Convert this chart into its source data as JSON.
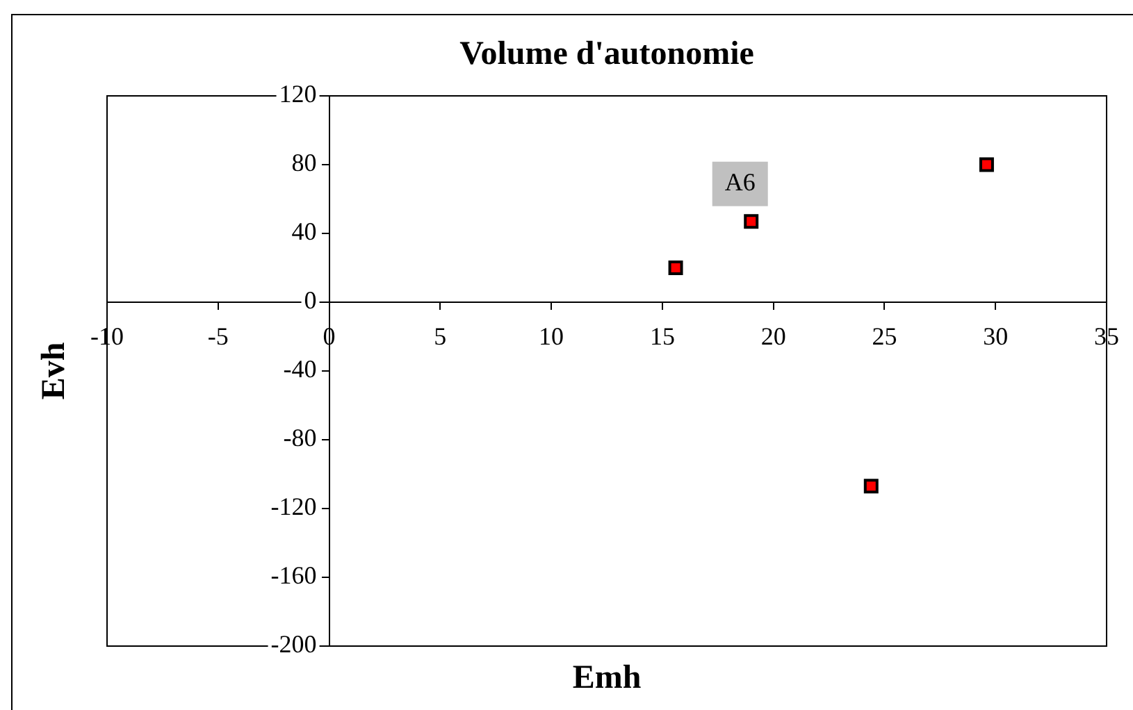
{
  "chart_data": {
    "type": "scatter",
    "title": "Volume d'autonomie",
    "xlabel": "Emh",
    "ylabel": "Evh",
    "x": [
      15.6,
      19.0,
      24.4,
      29.6
    ],
    "series": [
      {
        "color": "#ff0000",
        "values": [
          20,
          47,
          -107,
          80
        ]
      }
    ],
    "xlim": [
      -10,
      35
    ],
    "xticks": [
      -10,
      -5,
      0,
      5,
      10,
      15,
      20,
      25,
      30,
      35
    ],
    "ylim": [
      -200,
      120
    ],
    "yticks": [
      -200,
      -160,
      -120,
      -80,
      -40,
      0,
      40,
      80,
      120
    ],
    "annotations": [
      {
        "text": "A6",
        "x": 19.0,
        "y": 47
      }
    ],
    "grid": false,
    "legend": false,
    "marker": "square"
  }
}
